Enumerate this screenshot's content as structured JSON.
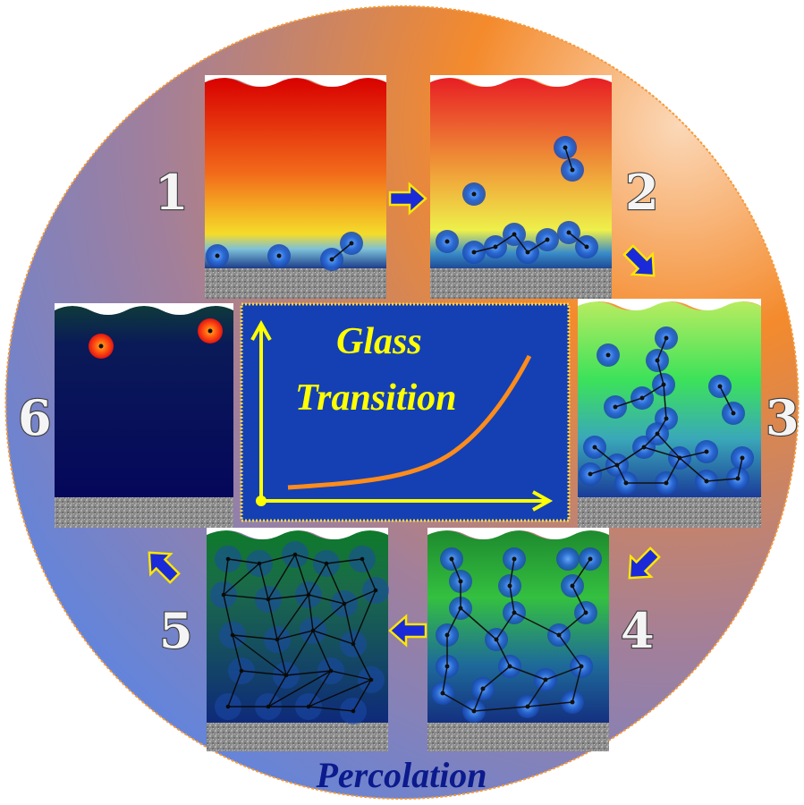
{
  "figure": {
    "stage_labels": [
      "1",
      "2",
      "3",
      "4",
      "5",
      "6"
    ],
    "center_title_line1": "Glass",
    "center_title_line2": "Transition",
    "bottom_label": "Percolation"
  },
  "colors": {
    "center_panel": "#1440b4",
    "axis_yellow": "#ffff00",
    "curve_orange": "#ff8c1a",
    "arrow_blue": "#1a2ad8",
    "substrate_gray": "#8c8c8c"
  },
  "icons": {
    "flow_arrow": "blue-arrow-icon"
  }
}
